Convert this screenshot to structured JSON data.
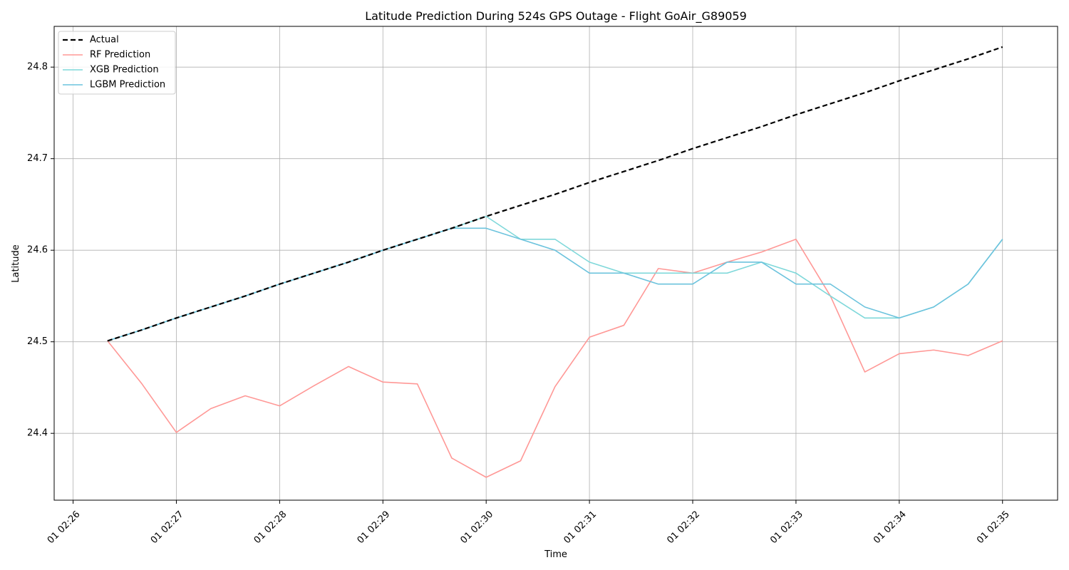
{
  "chart_data": {
    "type": "line",
    "title": "Latitude Prediction During 524s GPS Outage - Flight GoAir_G89059",
    "xlabel": "Time",
    "ylabel": "Latitude",
    "xlim": [
      "01 02:25:49",
      "01 02:35:32"
    ],
    "ylim": [
      24.327,
      24.8445
    ],
    "grid": true,
    "legend_position": "top-left",
    "x_ticks": [
      {
        "value": "01 02:26:00",
        "label": "01 02:26"
      },
      {
        "value": "01 02:27:00",
        "label": "01 02:27"
      },
      {
        "value": "01 02:28:00",
        "label": "01 02:28"
      },
      {
        "value": "01 02:29:00",
        "label": "01 02:29"
      },
      {
        "value": "01 02:30:00",
        "label": "01 02:30"
      },
      {
        "value": "01 02:31:00",
        "label": "01 02:31"
      },
      {
        "value": "01 02:32:00",
        "label": "01 02:32"
      },
      {
        "value": "01 02:33:00",
        "label": "01 02:33"
      },
      {
        "value": "01 02:34:00",
        "label": "01 02:34"
      },
      {
        "value": "01 02:35:00",
        "label": "01 02:35"
      }
    ],
    "y_ticks": [
      {
        "value": 24.4,
        "label": "24.4"
      },
      {
        "value": 24.5,
        "label": "24.5"
      },
      {
        "value": 24.6,
        "label": "24.6"
      },
      {
        "value": 24.7,
        "label": "24.7"
      },
      {
        "value": 24.8,
        "label": "24.8"
      }
    ],
    "x": [
      "01 02:26:20",
      "01 02:26:40",
      "01 02:27:00",
      "01 02:27:20",
      "01 02:27:40",
      "01 02:28:00",
      "01 02:28:20",
      "01 02:28:40",
      "01 02:29:00",
      "01 02:29:20",
      "01 02:29:40",
      "01 02:30:00",
      "01 02:30:20",
      "01 02:30:40",
      "01 02:31:00",
      "01 02:31:20",
      "01 02:31:40",
      "01 02:32:00",
      "01 02:32:20",
      "01 02:32:40",
      "01 02:33:00",
      "01 02:33:20",
      "01 02:33:40",
      "01 02:34:00",
      "01 02:34:20",
      "01 02:34:40",
      "01 02:35:00"
    ],
    "series": [
      {
        "name": "Actual",
        "color": "#000000",
        "dashed": true,
        "values": [
          24.501,
          24.513,
          24.526,
          24.538,
          24.55,
          24.563,
          24.575,
          24.587,
          24.6,
          24.612,
          24.624,
          24.637,
          24.649,
          24.661,
          24.674,
          24.686,
          24.698,
          24.711,
          24.723,
          24.735,
          24.748,
          24.76,
          24.772,
          24.785,
          24.797,
          24.809,
          24.822
        ]
      },
      {
        "name": "RF Prediction",
        "color": "#ff9896",
        "dashed": false,
        "values": [
          24.501,
          24.454,
          24.401,
          24.427,
          24.441,
          24.43,
          24.452,
          24.473,
          24.456,
          24.454,
          24.373,
          24.352,
          24.37,
          24.451,
          24.505,
          24.518,
          24.58,
          24.575,
          24.587,
          24.598,
          24.612,
          24.55,
          24.467,
          24.487,
          24.491,
          24.485,
          24.501
        ]
      },
      {
        "name": "XGB Prediction",
        "color": "#7fd8da",
        "dashed": false,
        "values": [
          24.501,
          24.513,
          24.526,
          24.538,
          24.55,
          24.563,
          24.575,
          24.587,
          24.6,
          24.612,
          24.624,
          24.637,
          24.612,
          24.612,
          24.587,
          24.575,
          24.575,
          24.575,
          24.575,
          24.587,
          24.575,
          24.55,
          24.526,
          24.526,
          24.538,
          24.563,
          24.612
        ]
      },
      {
        "name": "LGBM Prediction",
        "color": "#6cc3dd",
        "dashed": false,
        "values": [
          24.501,
          24.513,
          24.526,
          24.538,
          24.55,
          24.563,
          24.575,
          24.587,
          24.6,
          24.612,
          24.624,
          24.624,
          24.612,
          24.6,
          24.575,
          24.575,
          24.563,
          24.563,
          24.587,
          24.587,
          24.563,
          24.563,
          24.538,
          24.526,
          24.538,
          24.563,
          24.612
        ]
      }
    ]
  }
}
